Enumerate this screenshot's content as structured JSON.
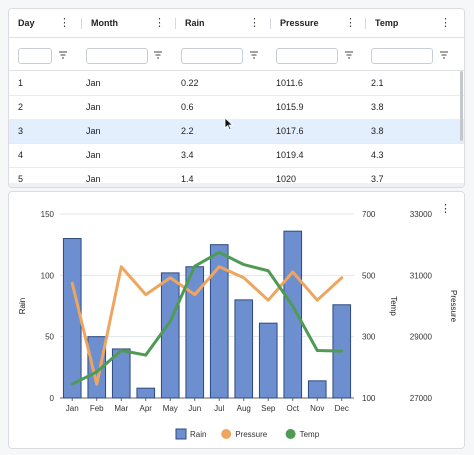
{
  "grid": {
    "columns": [
      {
        "label": "Day"
      },
      {
        "label": "Month"
      },
      {
        "label": "Rain"
      },
      {
        "label": "Pressure"
      },
      {
        "label": "Temp"
      }
    ],
    "rows": [
      [
        "1",
        "Jan",
        "0.22",
        "1011.6",
        "2.1"
      ],
      [
        "2",
        "Jan",
        "0.6",
        "1015.9",
        "3.8"
      ],
      [
        "3",
        "Jan",
        "2.2",
        "1017.6",
        "3.8"
      ],
      [
        "4",
        "Jan",
        "3.4",
        "1019.4",
        "4.3"
      ],
      [
        "5",
        "Jan",
        "1.4",
        "1020",
        "3.7"
      ]
    ],
    "selected_row_index": 2,
    "kebab_glyph": "⋮"
  },
  "chart_data": {
    "type": "bar",
    "categories": [
      "Jan",
      "Feb",
      "Mar",
      "Apr",
      "May",
      "Jun",
      "Jul",
      "Aug",
      "Sep",
      "Oct",
      "Nov",
      "Dec"
    ],
    "series": [
      {
        "name": "Rain",
        "type": "bar",
        "axis": "Rain",
        "color": "#6d8fcf",
        "values": [
          130,
          50,
          40,
          8,
          102,
          107,
          125,
          80,
          61,
          136,
          14,
          76
        ]
      },
      {
        "name": "Pressure",
        "type": "line",
        "axis": "Pressure",
        "color": "#eda55f",
        "values": [
          30740,
          27450,
          31280,
          30370,
          30920,
          30370,
          31280,
          30920,
          30190,
          31110,
          30190,
          30920
        ]
      },
      {
        "name": "Temp",
        "type": "line",
        "axis": "Temp",
        "color": "#4f9a55",
        "values": [
          145,
          185,
          255,
          240,
          350,
          530,
          575,
          535,
          515,
          400,
          255,
          253
        ]
      }
    ],
    "axes": {
      "Rain": {
        "label": "Rain",
        "ylim": [
          0,
          150
        ],
        "ticks": [
          0,
          50,
          100,
          150
        ]
      },
      "Temp": {
        "label": "Temp",
        "ylim": [
          100,
          700
        ],
        "ticks": [
          100,
          300,
          500,
          700
        ]
      },
      "Pressure": {
        "label": "Pressure",
        "ylim": [
          27000,
          33000
        ],
        "ticks": [
          27000,
          29000,
          31000,
          33000
        ]
      }
    },
    "grid": true,
    "legend": "bottom"
  }
}
